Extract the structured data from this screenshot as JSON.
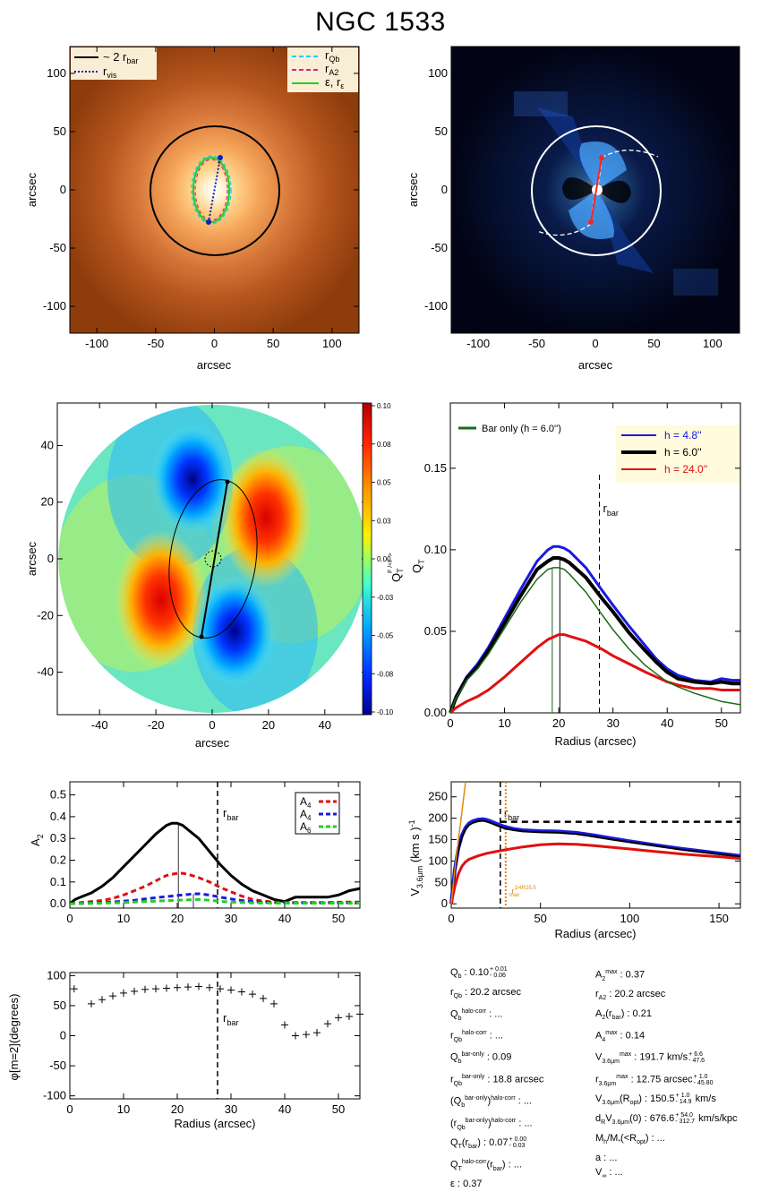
{
  "title": "NGC 1533",
  "panels": {
    "image_left": {
      "xlabel": "arcsec",
      "ylabel": "arcsec",
      "xticks": [
        -100,
        -50,
        0,
        50,
        100
      ],
      "yticks": [
        -100,
        -50,
        0,
        50,
        100
      ],
      "range": [
        -123,
        123
      ],
      "legend_left": [
        "~ 2 r",
        "r"
      ],
      "legend_left_sub": [
        "bar",
        "vis"
      ],
      "legend_right": [
        "r",
        "r",
        "ε, r"
      ],
      "legend_right_sub": [
        "Qb",
        "A2",
        "ε"
      ],
      "colors": {
        "two_rbar": "#000000",
        "rvis": "#1020c0",
        "rqb": "#20d0f0",
        "ra2": "#e0208a",
        "eps": "#20d020"
      }
    },
    "image_right": {
      "xlabel": "arcsec",
      "ylabel": "arcsec",
      "xticks": [
        -100,
        -50,
        0,
        50,
        100
      ],
      "yticks": [
        -100,
        -50,
        0,
        50,
        100
      ],
      "range": [
        -123,
        123
      ]
    },
    "qt_map": {
      "xlabel": "arcsec",
      "ylabel": "arcsec",
      "xticks": [
        -40,
        -20,
        0,
        20,
        40
      ],
      "yticks": [
        -40,
        -20,
        0,
        20,
        40
      ],
      "range": [
        -55,
        55
      ],
      "colorbar_title": "Q",
      "colorbar_title_sub": "T",
      "colorbar_title_rot": "F /<F >",
      "colorbar_ticks": [
        "0.10",
        "0.08",
        "0.05",
        "0.03",
        "0.00",
        "-0.03",
        "-0.05",
        "-0.08",
        "-0.10"
      ]
    },
    "qt_profile": {
      "xlabel": "Radius (arcsec)",
      "ylabel": "Q",
      "ylabel_sub": "T",
      "xticks": [
        0,
        10,
        20,
        30,
        40,
        50
      ],
      "yticks": [
        "0.00",
        "0.05",
        "0.10",
        "0.15"
      ],
      "rbar_label": "r",
      "rbar_label_sub": "bar",
      "legend_left": "Bar only (h =  6.0'')",
      "legend_left_sub": "z",
      "legend_right": [
        "h =  4.8''",
        "h =  6.0''",
        "h = 24.0''"
      ],
      "legend_right_sub": "z"
    },
    "a2_profile": {
      "ylabel": "A",
      "ylabel_sub": "2",
      "xticks": [
        0,
        10,
        20,
        30,
        40,
        50
      ],
      "yticks": [
        "0.0",
        "0.1",
        "0.2",
        "0.3",
        "0.4",
        "0.5"
      ],
      "rbar_label": "r",
      "rbar_label_sub": "bar",
      "legend": [
        "A",
        "A",
        "A"
      ],
      "legend_sub": [
        "4",
        "4",
        "6"
      ]
    },
    "vc_profile": {
      "xlabel": "Radius (arcsec)",
      "ylabel": "V",
      "ylabel_sub": "3.6μm",
      "ylabel_unit": "(km s  )",
      "ylabel_unit_sup": "-1",
      "xticks": [
        0,
        50,
        100,
        150
      ],
      "yticks": [
        0,
        50,
        100,
        150,
        200,
        250
      ],
      "rbar_label": "r",
      "rbar_label_sub": "bar",
      "rmax_label": "r",
      "rmax_label_sub": "max",
      "rmax_label_sup": "1/4R25.5"
    },
    "phase_profile": {
      "xlabel": "Radius (arcsec)",
      "ylabel": "φ[m=2](degrees)",
      "xticks": [
        0,
        10,
        20,
        30,
        40,
        50
      ],
      "yticks": [
        -100,
        -50,
        0,
        50,
        100
      ],
      "rbar_label": "r",
      "rbar_label_sub": "bar"
    }
  },
  "chart_data": [
    {
      "type": "line",
      "panel": "qt_profile",
      "xlim": [
        0,
        53.5
      ],
      "ylim": [
        0,
        0.19
      ],
      "rbar_x": 27.5,
      "series": [
        {
          "name": "h = 4.8''",
          "color": "#1a1ae0",
          "x": [
            0,
            1,
            2,
            3,
            5,
            7,
            10,
            13,
            16,
            18,
            19,
            20,
            21,
            22,
            25,
            28,
            30,
            33,
            36,
            38,
            40,
            42,
            45,
            48,
            50,
            52,
            53.5
          ],
          "y": [
            0,
            0.01,
            0.016,
            0.022,
            0.03,
            0.04,
            0.058,
            0.076,
            0.093,
            0.1,
            0.102,
            0.102,
            0.101,
            0.099,
            0.089,
            0.075,
            0.066,
            0.053,
            0.041,
            0.033,
            0.027,
            0.023,
            0.02,
            0.019,
            0.021,
            0.02,
            0.02
          ]
        },
        {
          "name": "h = 6.0''",
          "color": "#000000",
          "x": [
            0,
            1,
            2,
            3,
            5,
            7,
            10,
            13,
            16,
            18,
            19,
            20,
            21,
            22,
            25,
            28,
            30,
            33,
            36,
            38,
            40,
            42,
            45,
            48,
            50,
            52,
            53.5
          ],
          "y": [
            0,
            0.009,
            0.015,
            0.021,
            0.028,
            0.038,
            0.055,
            0.072,
            0.088,
            0.093,
            0.095,
            0.095,
            0.094,
            0.092,
            0.083,
            0.07,
            0.062,
            0.049,
            0.038,
            0.031,
            0.025,
            0.021,
            0.019,
            0.018,
            0.019,
            0.018,
            0.018
          ]
        },
        {
          "name": "h = 24.0''",
          "color": "#e01010",
          "x": [
            0,
            1,
            2,
            3,
            5,
            7,
            10,
            13,
            16,
            18,
            20,
            21,
            22,
            25,
            28,
            30,
            33,
            36,
            38,
            40,
            42,
            45,
            48,
            50,
            53.5
          ],
          "y": [
            0,
            0.003,
            0.005,
            0.007,
            0.01,
            0.014,
            0.022,
            0.031,
            0.04,
            0.045,
            0.048,
            0.048,
            0.047,
            0.044,
            0.039,
            0.035,
            0.03,
            0.025,
            0.022,
            0.019,
            0.017,
            0.015,
            0.015,
            0.014,
            0.014
          ]
        },
        {
          "name": "Bar only (h = 6.0'')",
          "color": "#1a6b1a",
          "x": [
            0,
            1,
            2,
            3,
            5,
            7,
            10,
            13,
            16,
            18,
            19,
            20,
            21,
            22,
            25,
            28,
            30,
            33,
            36,
            38,
            40,
            42,
            45,
            48,
            50,
            53.5
          ],
          "y": [
            0,
            0.009,
            0.014,
            0.02,
            0.027,
            0.036,
            0.052,
            0.068,
            0.082,
            0.088,
            0.089,
            0.089,
            0.088,
            0.085,
            0.074,
            0.06,
            0.051,
            0.039,
            0.029,
            0.024,
            0.019,
            0.016,
            0.012,
            0.009,
            0.007,
            0.005
          ]
        }
      ]
    },
    {
      "type": "line",
      "panel": "a2_profile",
      "xlim": [
        0,
        54
      ],
      "ylim": [
        -0.02,
        0.56
      ],
      "rbar_x": 27.5,
      "series": [
        {
          "name": "A2",
          "color": "#000000",
          "x": [
            0,
            1,
            2,
            4,
            6,
            8,
            10,
            12,
            14,
            16,
            18,
            19,
            20,
            21,
            22,
            24,
            26,
            28,
            30,
            32,
            34,
            36,
            38,
            40,
            42,
            44,
            46,
            48,
            50,
            52,
            54
          ],
          "y": [
            0.0,
            0.02,
            0.03,
            0.05,
            0.08,
            0.12,
            0.17,
            0.22,
            0.27,
            0.32,
            0.36,
            0.37,
            0.37,
            0.36,
            0.34,
            0.3,
            0.24,
            0.18,
            0.13,
            0.09,
            0.06,
            0.04,
            0.02,
            0.01,
            0.03,
            0.03,
            0.03,
            0.03,
            0.04,
            0.06,
            0.07
          ]
        },
        {
          "name": "A4",
          "color": "#e01010",
          "x": [
            0,
            2,
            4,
            6,
            8,
            10,
            12,
            14,
            16,
            18,
            20,
            21,
            22,
            24,
            26,
            28,
            30,
            32,
            34,
            36,
            38,
            40,
            42,
            44,
            46,
            48,
            50,
            52,
            54
          ],
          "y": [
            0,
            0.005,
            0.01,
            0.015,
            0.025,
            0.04,
            0.06,
            0.08,
            0.105,
            0.13,
            0.14,
            0.14,
            0.135,
            0.12,
            0.1,
            0.075,
            0.055,
            0.035,
            0.02,
            0.012,
            0.008,
            0.006,
            0.006,
            0.006,
            0.006,
            0.006,
            0.007,
            0.008,
            0.008
          ]
        },
        {
          "name": "A4",
          "color": "#1a1ae0",
          "x": [
            0,
            4,
            8,
            10,
            12,
            14,
            16,
            18,
            20,
            22,
            23,
            24,
            26,
            28,
            30,
            32,
            34,
            36,
            38,
            40,
            44,
            48,
            52,
            54
          ],
          "y": [
            0,
            0.003,
            0.008,
            0.012,
            0.016,
            0.022,
            0.028,
            0.033,
            0.038,
            0.043,
            0.045,
            0.046,
            0.04,
            0.03,
            0.022,
            0.015,
            0.01,
            0.007,
            0.005,
            0.004,
            0.004,
            0.004,
            0.004,
            0.004
          ]
        },
        {
          "name": "A6",
          "color": "#20d020",
          "x": [
            0,
            4,
            8,
            12,
            16,
            20,
            22,
            24,
            26,
            28,
            30,
            34,
            38,
            42,
            46,
            50,
            54
          ],
          "y": [
            0,
            0.002,
            0.004,
            0.008,
            0.012,
            0.016,
            0.018,
            0.02,
            0.016,
            0.011,
            0.008,
            0.004,
            0.003,
            0.003,
            0.003,
            0.003,
            0.003
          ]
        }
      ]
    },
    {
      "type": "line",
      "panel": "vc_profile",
      "xlim": [
        0,
        162
      ],
      "ylim": [
        -10,
        285
      ],
      "rbar_x": 27.5,
      "rmax_x": 30.5,
      "vmax": 191.7,
      "series": [
        {
          "name": "blue",
          "color": "#1a1ae0",
          "x": [
            0,
            2,
            4,
            6,
            8,
            10,
            12,
            15,
            18,
            20,
            22,
            25,
            30,
            35,
            40,
            50,
            60,
            70,
            80,
            90,
            100,
            110,
            120,
            130,
            140,
            150,
            162
          ],
          "y": [
            0,
            80,
            130,
            160,
            178,
            188,
            193,
            197,
            198,
            196,
            193,
            188,
            180,
            175,
            172,
            170,
            169,
            166,
            160,
            153,
            146,
            140,
            134,
            128,
            123,
            118,
            112
          ]
        },
        {
          "name": "black",
          "color": "#000000",
          "x": [
            0,
            2,
            4,
            6,
            8,
            10,
            12,
            15,
            18,
            20,
            22,
            25,
            30,
            35,
            40,
            50,
            60,
            70,
            80,
            90,
            100,
            110,
            120,
            130,
            140,
            150,
            162
          ],
          "y": [
            0,
            78,
            127,
            156,
            174,
            184,
            189,
            193,
            194,
            192,
            189,
            184,
            176,
            172,
            169,
            167,
            166,
            163,
            157,
            150,
            144,
            138,
            132,
            126,
            121,
            116,
            110
          ]
        },
        {
          "name": "red",
          "color": "#e01010",
          "x": [
            0,
            2,
            4,
            6,
            8,
            10,
            15,
            20,
            25,
            30,
            40,
            50,
            60,
            70,
            80,
            90,
            100,
            110,
            120,
            130,
            140,
            150,
            162
          ],
          "y": [
            0,
            40,
            70,
            88,
            98,
            104,
            112,
            118,
            122,
            126,
            133,
            138,
            140,
            139,
            136,
            132,
            128,
            124,
            120,
            116,
            113,
            110,
            106
          ]
        },
        {
          "name": "orange",
          "color": "#e08a10",
          "x": [
            0,
            2,
            4,
            6,
            7,
            8
          ],
          "y": [
            0,
            80,
            150,
            215,
            250,
            285
          ]
        }
      ]
    },
    {
      "type": "scatter",
      "panel": "phase_profile",
      "xlim": [
        0,
        54
      ],
      "ylim": [
        -105,
        105
      ],
      "rbar_x": 27.5,
      "x": [
        0.8,
        4,
        6,
        8,
        10,
        12,
        14,
        16,
        18,
        20,
        22,
        24,
        26,
        28,
        30,
        32,
        34,
        36,
        38,
        40,
        42,
        44,
        46,
        48,
        50,
        52,
        54
      ],
      "y": [
        78,
        53,
        60,
        66,
        71,
        74,
        77,
        78,
        79,
        80,
        81,
        82,
        80,
        78,
        76,
        73,
        69,
        62,
        53,
        18,
        0,
        2,
        5,
        20,
        30,
        32,
        36
      ]
    }
  ],
  "params_left": [
    {
      "label": "Q",
      "sub": "b",
      "value": " :  0.10",
      "sup2": "0.01",
      "sub2": "0.06",
      "rest": ""
    },
    {
      "label": "r",
      "sub": "Qb",
      "value": " :  20.2  arcsec",
      "sup2": "",
      "sub2": "",
      "rest": ""
    },
    {
      "label": "Q",
      "sub": "b",
      "sup": "halo-corr",
      "value": " : ...",
      "sup2": "",
      "sub2": "",
      "rest": ""
    },
    {
      "label": "r",
      "sub": "Qb",
      "sup": "halo-corr",
      "value": " : ...",
      "sup2": "",
      "sub2": "",
      "rest": ""
    },
    {
      "label": "Q",
      "sub": "b",
      "sup": "bar-only",
      "value": " :  0.09",
      "sup2": "",
      "sub2": "",
      "rest": ""
    },
    {
      "label": "r",
      "sub": "Qb",
      "sup": "bar-only",
      "value": " :  18.8 arcsec",
      "sup2": "",
      "sub2": "",
      "rest": ""
    },
    {
      "label": "(Q",
      "sub": "b",
      "sup": "bar-only",
      "value": ")",
      "sup2": "halo-corr",
      "sub2": "",
      "rest": " : ..."
    },
    {
      "label": "(r",
      "sub": "Qb",
      "sup": "bar-only",
      "value": ")",
      "sup2": "halo-corr",
      "sub2": "",
      "rest": " : ..."
    },
    {
      "label": "Q",
      "sub": "T",
      "sup": "",
      "value": "(r",
      "sup2": "",
      "sub2": "bar",
      "rest": ") :  0.07",
      "pm_sup": "0.00",
      "pm_sub": "0.03"
    },
    {
      "label": "Q",
      "sub": "T",
      "sup": "halo-corr",
      "value": "(r",
      "sup2": "",
      "sub2": "bar",
      "rest": ") : ..."
    },
    {
      "label": "ε",
      "sub": "",
      "value": " :  0.37",
      "sup2": "",
      "sub2": "",
      "rest": ""
    }
  ],
  "params_right": [
    {
      "label": "A",
      "sub": "2",
      "sup": "max",
      "value": " :  0.37"
    },
    {
      "label": "r",
      "sub": "A2",
      "sup": "",
      "value": " :  20.2 arcsec"
    },
    {
      "label": "A",
      "sub": "2",
      "sup": "",
      "value": "(r",
      "sub2": "bar",
      "rest": ") :  0.21"
    },
    {
      "label": "A",
      "sub": "4",
      "sup": "max",
      "value": " :  0.14"
    },
    {
      "label": "V",
      "sub": "3.6μm",
      "sup": "max",
      "value": " :  191.7",
      "pm_sup": "6.6",
      "pm_sub": "47.6",
      "rest": " km/s"
    },
    {
      "label": "r",
      "sub": "3.6μm",
      "sup": "max",
      "value": " :  12.75",
      "pm_sup": "1.0",
      "pm_sub": "45.80",
      "rest": " arcsec"
    },
    {
      "label": "V",
      "sub": "3.6μm",
      "sup": "",
      "value": "(R",
      "sub2": "opt",
      "rest": ") :  150.5",
      "pm_sup": "1.0",
      "pm_sub": "14.9",
      "rest2": " km/s"
    },
    {
      "label": "d",
      "sub": "R",
      "sup": "",
      "value": "V",
      "sub2": "3.6μm",
      "rest": "(0) :  676.6",
      "pm_sup": "54.0",
      "pm_sub": "312.7",
      "rest2": " km/s/kpc"
    },
    {
      "label": "M",
      "sub": "h",
      "sup": "",
      "value": "/M",
      "sub2": "*",
      "rest": "(<R",
      "sub3": "opt",
      "rest3": ") : ..."
    },
    {
      "label": "a",
      "sub": "",
      "sup": "",
      "value": " : ..."
    },
    {
      "label": "V",
      "sub": "∞",
      "sup": "",
      "value": " : ..."
    }
  ]
}
